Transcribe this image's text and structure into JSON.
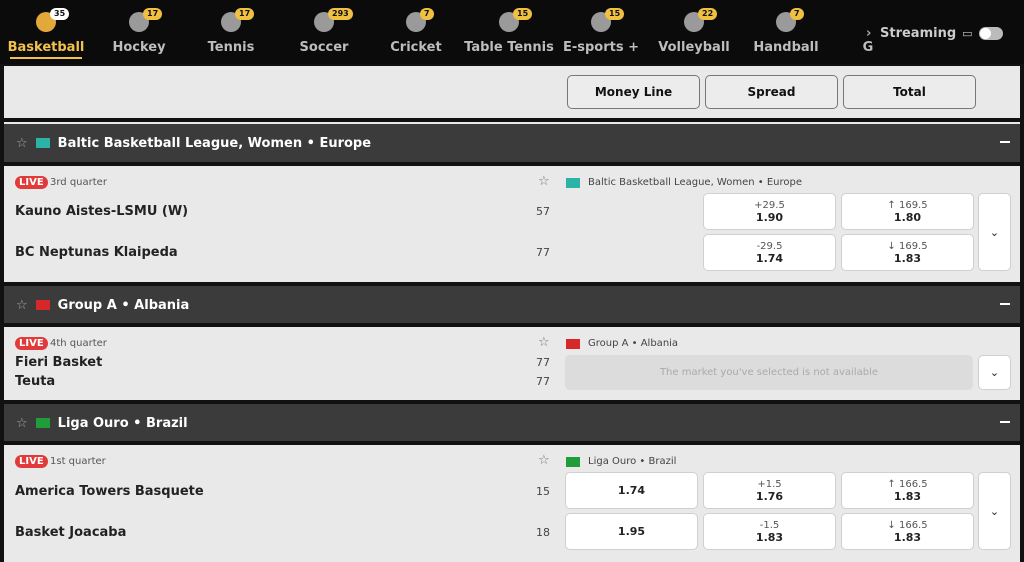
{
  "nav": {
    "sports": [
      {
        "label": "Basketball",
        "count": "35",
        "icon": "basketball-icon",
        "active": true
      },
      {
        "label": "Hockey",
        "count": "17",
        "icon": "hockey-icon"
      },
      {
        "label": "Tennis",
        "count": "17",
        "icon": "tennis-icon"
      },
      {
        "label": "Soccer",
        "count": "293",
        "icon": "soccer-icon"
      },
      {
        "label": "Cricket",
        "count": "7",
        "icon": "cricket-icon"
      },
      {
        "label": "Table Tennis",
        "count": "15",
        "icon": "table-tennis-icon"
      },
      {
        "label": "E-sports +",
        "count": "15",
        "icon": "gamepad-icon"
      },
      {
        "label": "Volleyball",
        "count": "22",
        "icon": "volleyball-icon"
      },
      {
        "label": "Handball",
        "count": "7",
        "icon": "handball-icon"
      },
      {
        "label": "G",
        "icon": "more-icon"
      }
    ],
    "streaming": "Streaming",
    "accent": "#f2c14e"
  },
  "markets": {
    "money_line": "Money Line",
    "spread": "Spread",
    "total": "Total"
  },
  "leagues": [
    {
      "name": "Baltic Basketball League, Women • Europe",
      "period": "3rd quarter",
      "live": "LIVE",
      "teams": [
        {
          "name": "Kauno Aistes-LSMU (W)",
          "score": "57",
          "spread_line": "+29.5",
          "spread_odd": "1.90",
          "total_line": "↑ 169.5",
          "total_odd": "1.80"
        },
        {
          "name": "BC Neptunas Klaipeda",
          "score": "77",
          "spread_line": "-29.5",
          "spread_odd": "1.74",
          "total_line": "↓ 169.5",
          "total_odd": "1.83"
        }
      ]
    },
    {
      "name": "Group A • Albania",
      "period": "4th quarter",
      "live": "LIVE",
      "unavailable": "The market you've selected is not available",
      "teams": [
        {
          "name": "Fieri Basket",
          "score": "77"
        },
        {
          "name": "Teuta",
          "score": "77"
        }
      ]
    },
    {
      "name": "Liga Ouro • Brazil",
      "period": "1st quarter",
      "live": "LIVE",
      "teams": [
        {
          "name": "America Towers Basquete",
          "score": "15",
          "ml": "1.74",
          "spread_line": "+1.5",
          "spread_odd": "1.76",
          "total_line": "↑ 166.5",
          "total_odd": "1.83"
        },
        {
          "name": "Basket Joacaba",
          "score": "18",
          "ml": "1.95",
          "spread_line": "-1.5",
          "spread_odd": "1.83",
          "total_line": "↓ 166.5",
          "total_odd": "1.83"
        }
      ]
    }
  ]
}
